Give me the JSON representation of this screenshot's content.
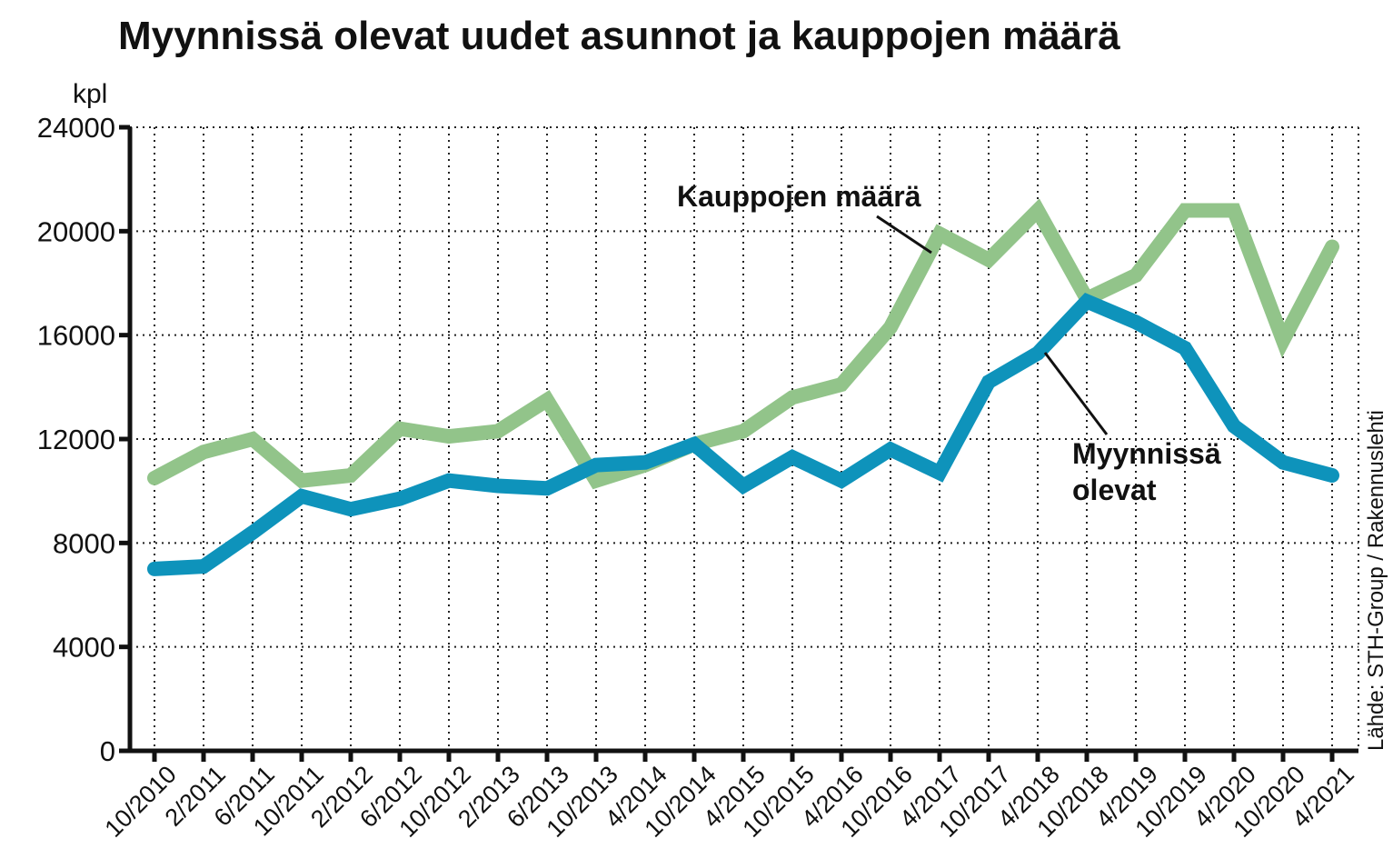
{
  "chart_data": {
    "type": "line",
    "title": "Myynnissä olevat uudet asunnot ja kauppojen määrä",
    "ylabel": "kpl",
    "xlabel": "",
    "ylim": [
      0,
      24000
    ],
    "yticks": [
      "0",
      "4000",
      "8000",
      "12000",
      "16000",
      "20000",
      "24000"
    ],
    "ytick_values": [
      0,
      4000,
      8000,
      12000,
      16000,
      20000,
      24000
    ],
    "categories": [
      "10/2010",
      "2/2011",
      "6/2011",
      "10/2011",
      "2/2012",
      "6/2012",
      "10/2012",
      "2/2013",
      "6/2013",
      "10/2013",
      "4/2014",
      "10/2014",
      "4/2015",
      "10/2015",
      "4/2016",
      "10/2016",
      "4/2017",
      "10/2017",
      "4/2018",
      "10/2018",
      "4/2019",
      "10/2019",
      "4/2020",
      "10/2020",
      "4/2021"
    ],
    "grid": true,
    "series": [
      {
        "name": "Kauppojen määrä",
        "color": "#92c48a",
        "values": [
          10500,
          11500,
          12000,
          10400,
          10600,
          12400,
          12100,
          12300,
          13500,
          10400,
          11000,
          11800,
          12300,
          13600,
          14100,
          16300,
          19900,
          18900,
          20800,
          17400,
          18300,
          20800,
          20800,
          15800,
          19400
        ]
      },
      {
        "name": "Myynnissä olevat",
        "color": "#0e93bb",
        "values": [
          7000,
          7100,
          8400,
          9800,
          9300,
          9700,
          10400,
          10200,
          10100,
          11000,
          11100,
          11800,
          10200,
          11300,
          10400,
          11600,
          10700,
          14200,
          15300,
          17300,
          16500,
          15500,
          12500,
          11100,
          10600
        ]
      }
    ],
    "annotations": [
      {
        "text": "Kauppojen määrä",
        "series": "Kauppojen määrä"
      },
      {
        "lines": [
          "Myynnissä",
          "olevat"
        ],
        "series": "Myynnissä olevat"
      }
    ],
    "source": "Lähde: STH-Group / Rakennuslehti"
  }
}
